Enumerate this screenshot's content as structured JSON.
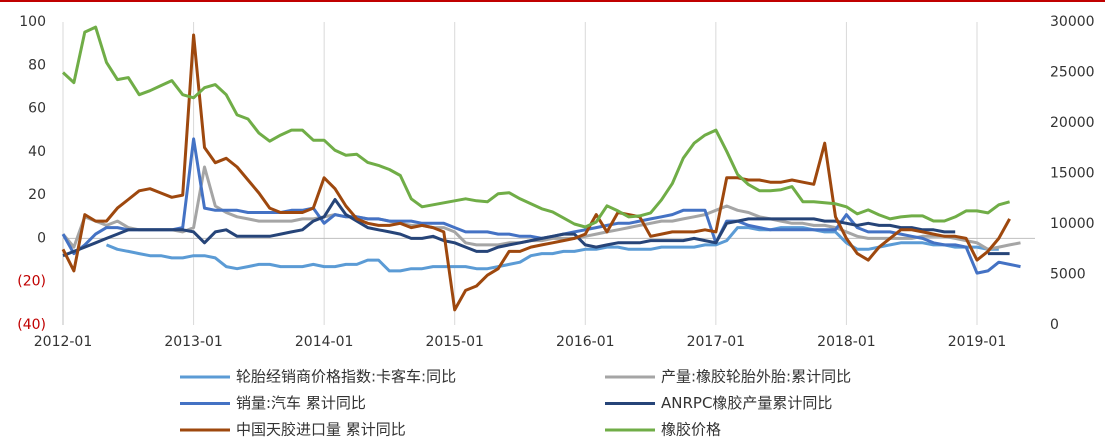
{
  "chart_data": {
    "type": "line",
    "categories": [
      "2012-01",
      null,
      null,
      null,
      null,
      null,
      null,
      null,
      null,
      null,
      null,
      null,
      "2013-01",
      null,
      null,
      null,
      null,
      null,
      null,
      null,
      null,
      null,
      null,
      null,
      "2014-01",
      null,
      null,
      null,
      null,
      null,
      null,
      null,
      null,
      null,
      null,
      null,
      "2015-01",
      null,
      null,
      null,
      null,
      null,
      null,
      null,
      null,
      null,
      null,
      null,
      "2016-01",
      null,
      null,
      null,
      null,
      null,
      null,
      null,
      null,
      null,
      null,
      null,
      "2017-01",
      null,
      null,
      null,
      null,
      null,
      null,
      null,
      null,
      null,
      null,
      null,
      "2018-01",
      null,
      null,
      null,
      null,
      null,
      null,
      null,
      null,
      null,
      null,
      null,
      "2019-01",
      null,
      null,
      null,
      null
    ],
    "ylim": [
      -40,
      100
    ],
    "yticks": [
      {
        "value": -40,
        "label": "(40)"
      },
      {
        "value": -20,
        "label": "(20)"
      },
      0,
      20,
      40,
      60,
      80,
      100
    ],
    "y2lim": [
      0,
      30000
    ],
    "y2ticks": [
      0,
      5000,
      10000,
      15000,
      20000,
      25000,
      30000
    ],
    "negative_tick_color": "#c00000",
    "grid": true,
    "series": [
      {
        "name": "轮胎经销商价格指数:卡客车:同比",
        "color": "#5b9bd5",
        "values": [
          null,
          null,
          null,
          null,
          -3,
          -5,
          -6,
          -7,
          -8,
          -8,
          -9,
          -9,
          -8,
          -8,
          -9,
          -13,
          -14,
          -13,
          -12,
          -12,
          -13,
          -13,
          -13,
          -12,
          -13,
          -13,
          -12,
          -12,
          -10,
          -10,
          -15,
          -15,
          -14,
          -14,
          -13,
          -13,
          -13,
          -13,
          -14,
          -14,
          -13,
          -12,
          -11,
          -8,
          -7,
          -7,
          -6,
          -6,
          -5,
          -5,
          -4,
          -4,
          -5,
          -5,
          -5,
          -4,
          -4,
          -4,
          -4,
          -3,
          -3,
          -1,
          5,
          5,
          4,
          4,
          5,
          5,
          5,
          4,
          3,
          3,
          -2,
          -5,
          -5,
          -4,
          -3,
          -2,
          -2,
          -2,
          -3,
          -3,
          -4,
          -4,
          -4,
          -5,
          -5,
          null,
          null
        ]
      },
      {
        "name": "产量:橡胶轮胎外胎:累计同比",
        "color": "#a5a5a5",
        "values": [
          2,
          -4,
          10,
          8,
          6,
          8,
          5,
          4,
          4,
          4,
          4,
          3,
          5,
          33,
          15,
          12,
          10,
          9,
          8,
          8,
          8,
          8,
          9,
          9,
          10,
          11,
          10,
          10,
          9,
          9,
          8,
          7,
          6,
          6,
          5,
          5,
          3,
          -2,
          -3,
          -3,
          -3,
          -2,
          -2,
          -1,
          -1,
          0,
          0,
          0,
          1,
          2,
          3,
          4,
          5,
          6,
          7,
          8,
          8,
          9,
          10,
          11,
          13,
          15,
          13,
          12,
          10,
          9,
          8,
          7,
          7,
          6,
          6,
          5,
          3,
          1,
          0,
          0,
          0,
          0,
          0,
          1,
          1,
          1,
          0,
          -1,
          -2,
          -5,
          -4,
          -3,
          -2
        ]
      },
      {
        "name": "销量:汽车 累计同比",
        "color": "#4472c4",
        "values": [
          2,
          -7,
          -3,
          2,
          5,
          5,
          4,
          4,
          4,
          4,
          4,
          5,
          46,
          14,
          13,
          13,
          13,
          12,
          12,
          12,
          12,
          13,
          13,
          14,
          7,
          11,
          10,
          10,
          9,
          9,
          8,
          8,
          8,
          7,
          7,
          7,
          5,
          3,
          3,
          3,
          2,
          2,
          1,
          1,
          0,
          1,
          2,
          3,
          4,
          5,
          6,
          7,
          7,
          8,
          9,
          10,
          11,
          13,
          13,
          13,
          -2,
          8,
          8,
          6,
          5,
          4,
          4,
          4,
          4,
          4,
          4,
          4,
          11,
          5,
          3,
          3,
          3,
          2,
          1,
          0,
          -2,
          -3,
          -3,
          -4,
          -16,
          -15,
          -11,
          -12,
          -13
        ]
      },
      {
        "name": "ANRPC橡胶产量累计同比",
        "color": "#264478",
        "values": [
          -8,
          -6,
          -4,
          -2,
          0,
          2,
          4,
          4,
          4,
          4,
          4,
          4,
          3,
          -2,
          3,
          4,
          1,
          1,
          1,
          1,
          2,
          3,
          4,
          8,
          10,
          18,
          11,
          8,
          5,
          4,
          3,
          2,
          0,
          0,
          1,
          -1,
          -2,
          -4,
          -6,
          -6,
          -4,
          -3,
          -2,
          -1,
          0,
          1,
          2,
          2,
          -3,
          -4,
          -3,
          -2,
          -2,
          -2,
          -1,
          -1,
          -1,
          -1,
          0,
          -1,
          -2,
          7,
          8,
          9,
          9,
          9,
          9,
          9,
          9,
          9,
          8,
          8,
          7,
          6,
          7,
          6,
          6,
          5,
          5,
          4,
          4,
          3,
          3,
          null,
          null,
          -7,
          -7,
          -7,
          null
        ]
      },
      {
        "name": "中国天胶进口量 累计同比",
        "color": "#9e480e",
        "values": [
          -5,
          -15,
          11,
          8,
          8,
          14,
          18,
          22,
          23,
          21,
          19,
          20,
          94,
          42,
          35,
          37,
          33,
          27,
          21,
          14,
          12,
          12,
          12,
          14,
          28,
          23,
          15,
          9,
          7,
          6,
          6,
          7,
          5,
          6,
          5,
          3,
          -33,
          -24,
          -22,
          -17,
          -14,
          -6,
          -6,
          -4,
          -3,
          -2,
          -1,
          0,
          2,
          11,
          3,
          12,
          11,
          10,
          1,
          2,
          3,
          3,
          3,
          4,
          3,
          28,
          28,
          27,
          27,
          26,
          26,
          27,
          26,
          25,
          44,
          10,
          0,
          -7,
          -10,
          -4,
          0,
          4,
          4,
          3,
          2,
          1,
          1,
          0,
          -10,
          -6,
          0,
          9,
          null
        ]
      },
      {
        "name": "橡胶价格",
        "color": "#70ad47",
        "axis": "y2",
        "values": [
          25000,
          24000,
          29000,
          29500,
          26000,
          24300,
          24500,
          22800,
          23200,
          23700,
          24200,
          22800,
          22500,
          23500,
          23800,
          22800,
          20800,
          20400,
          19000,
          18200,
          18800,
          19300,
          19300,
          18300,
          18300,
          17300,
          16800,
          16900,
          16100,
          15800,
          15400,
          14800,
          12500,
          11700,
          11900,
          12100,
          12300,
          12500,
          12300,
          12200,
          13000,
          13100,
          12500,
          12000,
          11500,
          11200,
          10600,
          10000,
          9700,
          10200,
          11800,
          11300,
          10700,
          10800,
          11100,
          12400,
          14000,
          16500,
          18000,
          18800,
          19300,
          17200,
          14900,
          13900,
          13300,
          13300,
          13400,
          13700,
          12200,
          12200,
          12100,
          12000,
          11700,
          11000,
          11400,
          10900,
          10500,
          10700,
          10800,
          10800,
          10300,
          10300,
          10700,
          11300,
          11300,
          11100,
          11900,
          12200,
          null
        ]
      }
    ]
  }
}
